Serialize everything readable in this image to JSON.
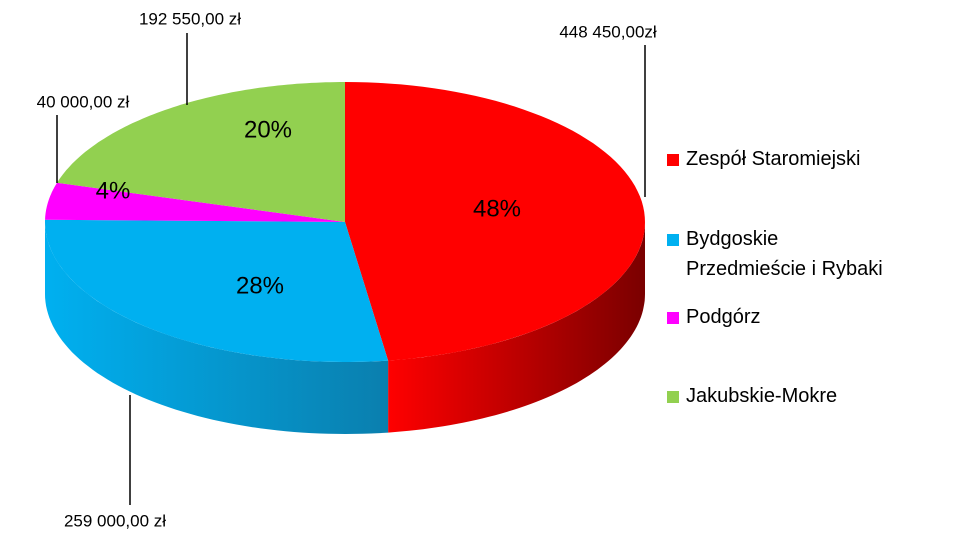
{
  "chart_data": {
    "type": "pie",
    "categories": [
      "Zespół Staromiejski",
      "Bydgoskie Przedmieście i Rybaki",
      "Podgórz",
      "Jakubskie-Mokre"
    ],
    "values": [
      448450,
      259000,
      40000,
      192550
    ],
    "value_labels": [
      "448 450,00zł",
      "259 000,00 zł",
      "40 000,00 zł",
      "192 550,00 zł"
    ],
    "percentages": [
      48,
      28,
      4,
      20
    ],
    "percentage_labels": [
      "48%",
      "28%",
      "4%",
      "20%"
    ],
    "colors": [
      "#ff0000",
      "#00b0f0",
      "#ff00ff",
      "#92d050"
    ],
    "side_colors": [
      "#7a0000",
      "#0a7fae",
      "#a000a0",
      "#5f8f30"
    ],
    "legend": "right"
  }
}
